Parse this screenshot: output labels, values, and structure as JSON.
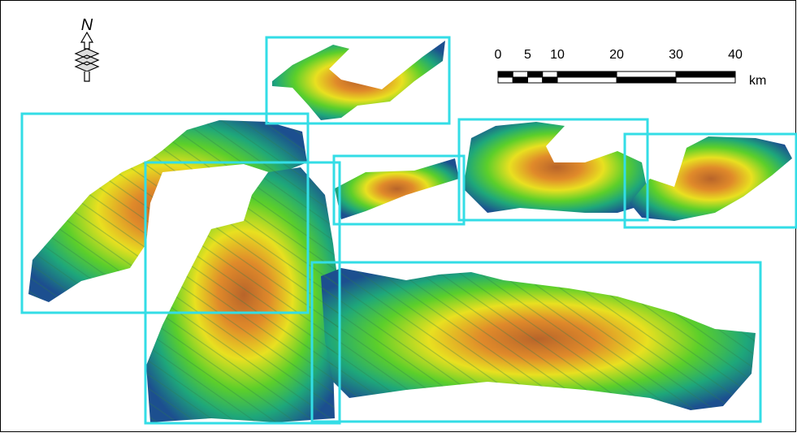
{
  "north_label": "N",
  "scale_bar": {
    "ticks": [
      0,
      5,
      10,
      20,
      30,
      40
    ],
    "unit": "km"
  }
}
